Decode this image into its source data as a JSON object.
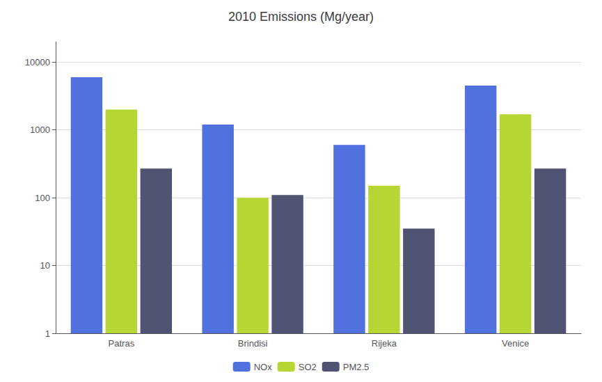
{
  "chart_data": {
    "type": "bar",
    "title": "2010 Emissions (Mg/year)",
    "categories": [
      "Patras",
      "Brindisi",
      "Rijeka",
      "Venice"
    ],
    "series": [
      {
        "name": "NOx",
        "values": [
          6000,
          1200,
          600,
          4500
        ]
      },
      {
        "name": "SO2",
        "values": [
          2000,
          100,
          150,
          1700
        ]
      },
      {
        "name": "PM2.5",
        "values": [
          270,
          110,
          35,
          270
        ]
      }
    ],
    "log": "y",
    "ylim": [
      1,
      20000
    ],
    "yticks": [
      1,
      10,
      100,
      1000,
      10000
    ],
    "grid": true,
    "legend": "bottom"
  }
}
